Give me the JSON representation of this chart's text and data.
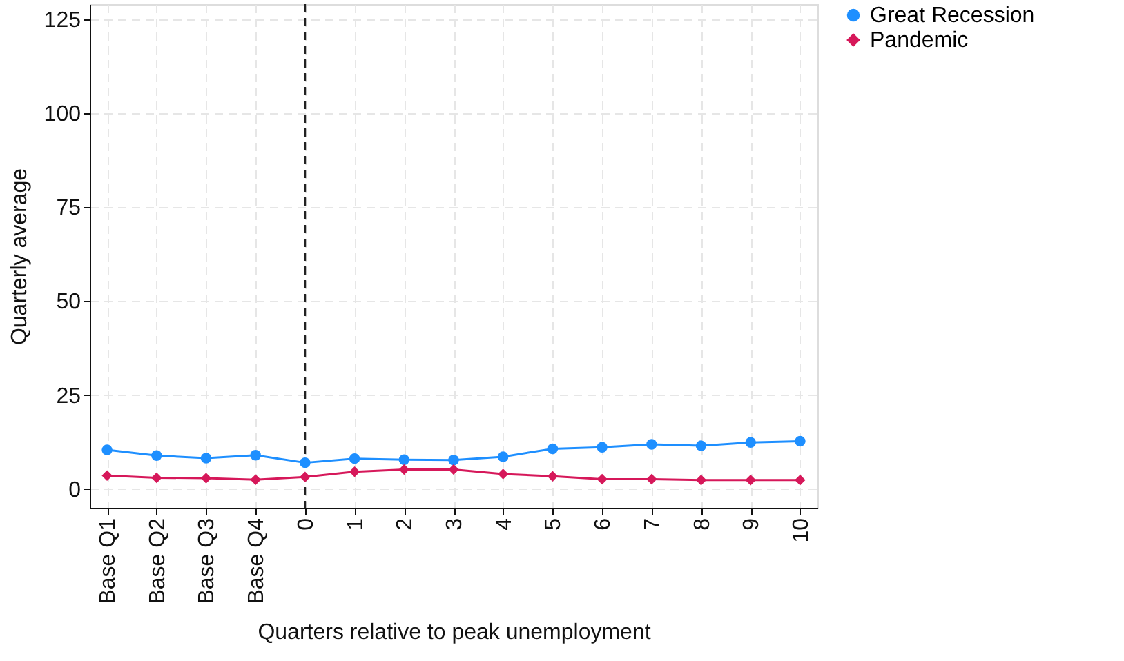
{
  "chart_data": {
    "type": "line",
    "xlabel": "Quarters relative to peak unemployment",
    "ylabel": "Quarterly average",
    "categories": [
      "Base Q1",
      "Base Q2",
      "Base Q3",
      "Base Q4",
      "0",
      "1",
      "2",
      "3",
      "4",
      "5",
      "6",
      "7",
      "8",
      "9",
      "10"
    ],
    "series": [
      {
        "name": "Great Recession",
        "color": "#1e8fff",
        "marker": "circle",
        "values": [
          10.4,
          8.9,
          8.2,
          9.0,
          7.0,
          8.1,
          7.8,
          7.7,
          8.6,
          10.7,
          11.1,
          11.9,
          11.5,
          12.4,
          12.7
        ]
      },
      {
        "name": "Pandemic",
        "color": "#d6185a",
        "marker": "diamond",
        "values": [
          3.6,
          3.0,
          2.9,
          2.5,
          3.2,
          4.6,
          5.2,
          5.2,
          4.0,
          3.4,
          2.6,
          2.6,
          2.4,
          2.4,
          2.4
        ]
      }
    ],
    "ylim": [
      -5,
      129
    ],
    "yticks": [
      0,
      25,
      50,
      75,
      100,
      125
    ],
    "ref_lines": [
      {
        "axis": "x",
        "value": "0",
        "line_style": "dashed",
        "color": "#222222"
      }
    ],
    "grid": true,
    "legend": "right",
    "line_style": "solid"
  }
}
